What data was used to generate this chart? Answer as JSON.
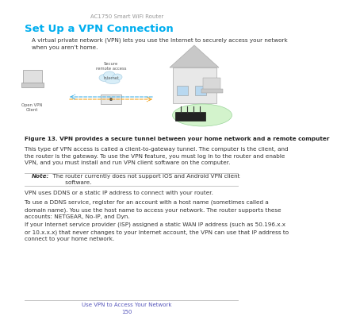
{
  "bg_color": "#ffffff",
  "header_text": "AC1750 Smart WiFi Router",
  "header_color": "#999999",
  "header_fontsize": 5.0,
  "title": "Set Up a VPN Connection",
  "title_color": "#00aeef",
  "title_fontsize": 9.5,
  "body_color": "#333333",
  "body_fontsize": 5.2,
  "para1": "A virtual private network (VPN) lets you use the Internet to securely access your network\nwhen you aren’t home.",
  "figure_caption_bold": "Figure 13. VPN provides a secure tunnel between your home network and a remote computer",
  "figure_caption_color": "#222222",
  "figure_caption_fontsize": 5.2,
  "para2": "This type of VPN access is called a client-to-gateway tunnel. The computer is the client, and\nthe router is the gateway. To use the VPN feature, you must log in to the router and enable\nVPN, and you must install and run VPN client software on the computer.",
  "note_label": "Note:",
  "note_body": "  The router currently does not support iOS and Android VPN client\n         software.",
  "note_color": "#333333",
  "note_fontsize": 5.2,
  "para3": "VPN uses DDNS or a static IP address to connect with your router.",
  "para4": "To use a DDNS service, register for an account with a host name (sometimes called a\ndomain name). You use the host name to access your network. The router supports these\naccounts: NETGEAR, No-IP, and Dyn.",
  "para5": "If your Internet service provider (ISP) assigned a static WAN IP address (such as 50.196.x.x\nor 10.x.x.x) that never changes to your Internet account, the VPN can use that IP address to\nconnect to your home network.",
  "footer_link": "Use VPN to Access Your Network",
  "footer_page": "150",
  "footer_color": "#5555bb",
  "footer_fontsize": 5.0,
  "lm": 0.07,
  "ind": 0.1,
  "line_color": "#bbbbbb"
}
